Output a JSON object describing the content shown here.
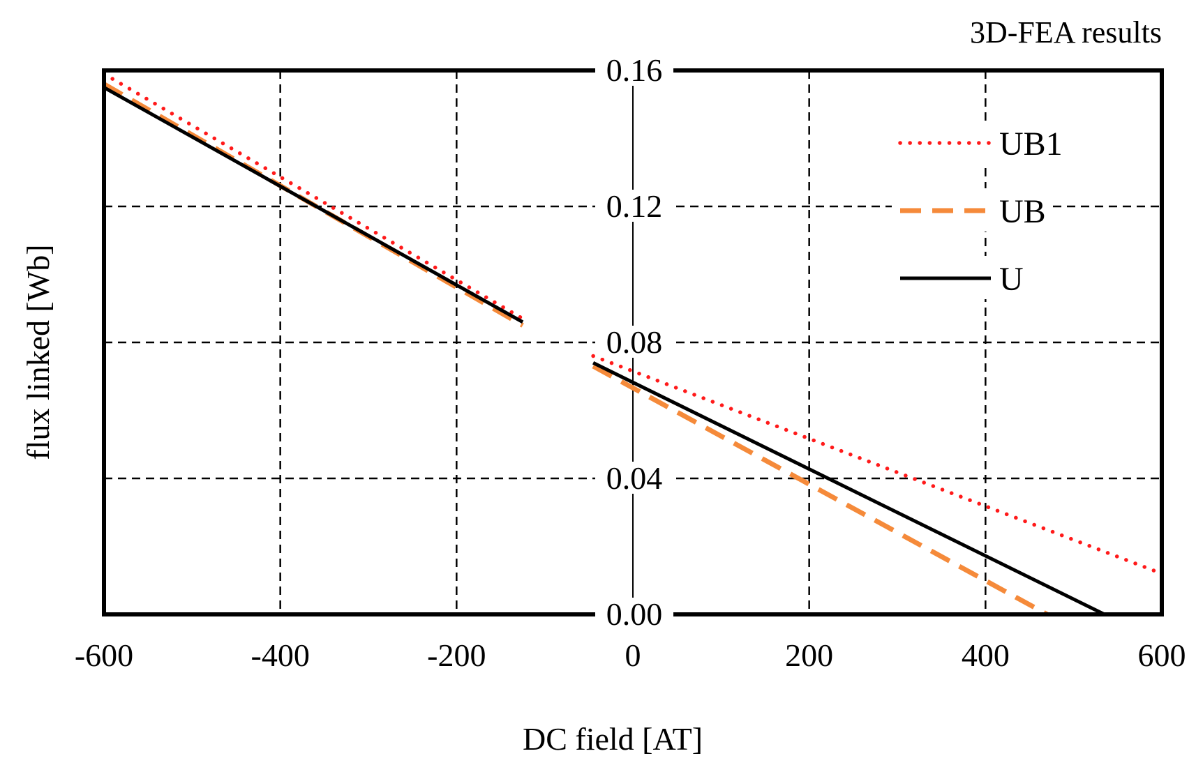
{
  "chart_data": {
    "type": "line",
    "title": "3D-FEA results",
    "xlabel": "DC field [AT]",
    "ylabel": "flux linked  [Wb]",
    "xlim": [
      -600,
      600
    ],
    "ylim": [
      0,
      0.16
    ],
    "xticks": [
      -600,
      -400,
      -200,
      0,
      200,
      400,
      600
    ],
    "xtick_labels": [
      "-600",
      "-400",
      "-200",
      "0",
      "200",
      "400",
      "600"
    ],
    "yticks": [
      0,
      0.04,
      0.08,
      0.12,
      0.16
    ],
    "ytick_labels": [
      "0.00",
      "0.04",
      "0.08",
      "0.12",
      "0.16"
    ],
    "grid": true,
    "legend_position": "top-right",
    "series": [
      {
        "name": "UB1",
        "color": "#ff1a1a",
        "style": "dotted",
        "segments": [
          {
            "x": [
              -600,
              -125
            ],
            "y": [
              0.159,
              0.087
            ]
          },
          {
            "x": [
              -45,
              600
            ],
            "y": [
              0.076,
              0.012
            ]
          }
        ]
      },
      {
        "name": "UB",
        "color": "#f58a3a",
        "style": "dashed",
        "segments": [
          {
            "x": [
              -600,
              -125
            ],
            "y": [
              0.156,
              0.085
            ]
          },
          {
            "x": [
              -45,
              470
            ],
            "y": [
              0.073,
              0.0
            ]
          }
        ]
      },
      {
        "name": "U",
        "color": "#000000",
        "style": "solid",
        "segments": [
          {
            "x": [
              -600,
              -125
            ],
            "y": [
              0.155,
              0.086
            ]
          },
          {
            "x": [
              -45,
              535
            ],
            "y": [
              0.074,
              0.0
            ]
          }
        ]
      }
    ]
  }
}
